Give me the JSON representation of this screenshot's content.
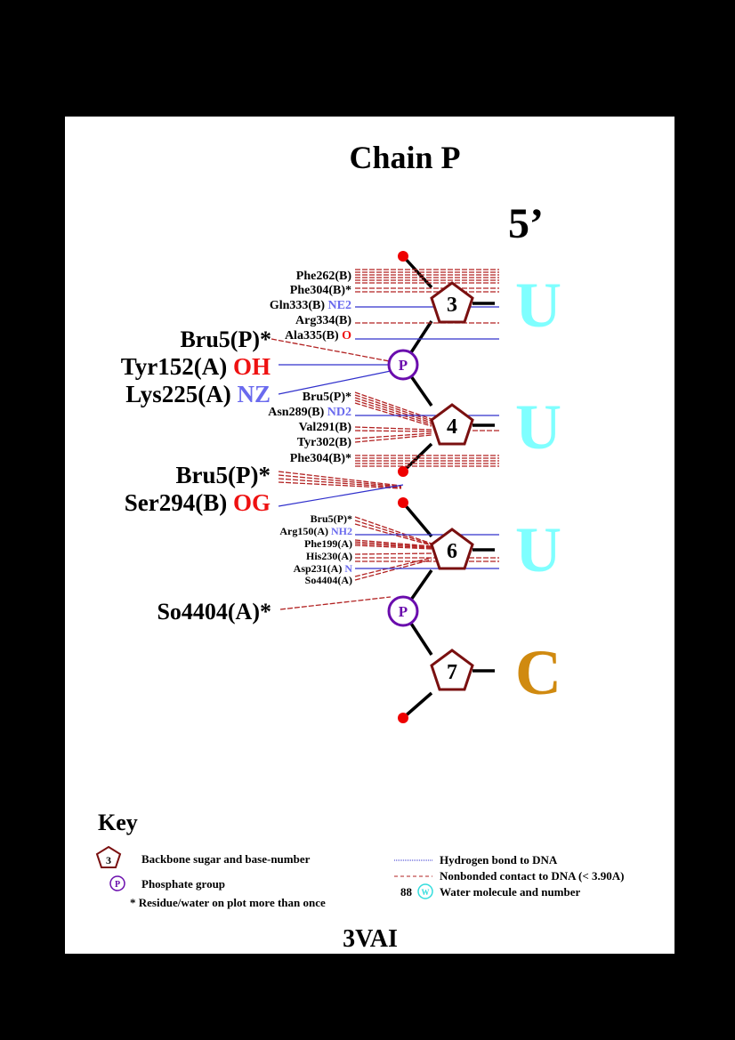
{
  "title": "Chain P",
  "strand_label": "5’",
  "pdb_id": "3VAI",
  "nucleotides": [
    {
      "number": "3",
      "base": "U"
    },
    {
      "number": "4",
      "base": "U"
    },
    {
      "number": "6",
      "base": "U"
    },
    {
      "number": "7",
      "base": "C"
    }
  ],
  "phosphate_label": "P",
  "residues": {
    "r1": {
      "name": "Phe262(B)",
      "atom": ""
    },
    "r2": {
      "name": "Phe304(B)*",
      "atom": ""
    },
    "r3": {
      "name": "Gln333(B)",
      "atom": "NE2"
    },
    "r4": {
      "name": "Arg334(B)",
      "atom": ""
    },
    "r5": {
      "name": "Ala335(B)",
      "atom": "O"
    },
    "r6": {
      "name": "Bru5(P)*",
      "atom": ""
    },
    "r7": {
      "name": "Tyr152(A)",
      "atom": "OH"
    },
    "r8": {
      "name": "Lys225(A)",
      "atom": "NZ"
    },
    "r9": {
      "name": "Bru5(P)*",
      "atom": ""
    },
    "r10": {
      "name": "Asn289(B)",
      "atom": "ND2"
    },
    "r11": {
      "name": "Val291(B)",
      "atom": ""
    },
    "r12": {
      "name": "Tyr302(B)",
      "atom": ""
    },
    "r13": {
      "name": "Phe304(B)*",
      "atom": ""
    },
    "r14": {
      "name": "Bru5(P)*",
      "atom": ""
    },
    "r15": {
      "name": "Ser294(B)",
      "atom": "OG"
    },
    "r16": {
      "name": "Bru5(P)*",
      "atom": ""
    },
    "r17": {
      "name": "Arg150(A)",
      "atom": "NH2"
    },
    "r18": {
      "name": "Phe199(A)",
      "atom": ""
    },
    "r19": {
      "name": "His230(A)",
      "atom": ""
    },
    "r20": {
      "name": "Asp231(A)",
      "atom": "N"
    },
    "r21": {
      "name": "So4404(A)",
      "atom": ""
    },
    "r22": {
      "name": "So4404(A)*",
      "atom": ""
    }
  },
  "key": {
    "heading": "Key",
    "sugar_symbol": "3",
    "sugar_text": "Backbone sugar and base-number",
    "phosphate_symbol": "P",
    "phosphate_text": "Phosphate group",
    "asterisk_text": "* Residue/water on plot more than once",
    "hbond_text": "Hydrogen bond to DNA",
    "nonbonded_text": "Nonbonded contact to DNA (< 3.90A)",
    "water_number": "88",
    "water_symbol": "W",
    "water_text": "Water molecule and number"
  },
  "colors": {
    "sugar": "#7a1010",
    "phosphate": "#6a0dad",
    "hbond": "#3030cc",
    "nonbonded": "#b22222",
    "pyrimidine_u": "#7fffff",
    "cytosine": "#d08a10",
    "atom_polar_n": "#6a6aee",
    "atom_o": "#ee1111",
    "terminal_dot": "#ee0000"
  }
}
